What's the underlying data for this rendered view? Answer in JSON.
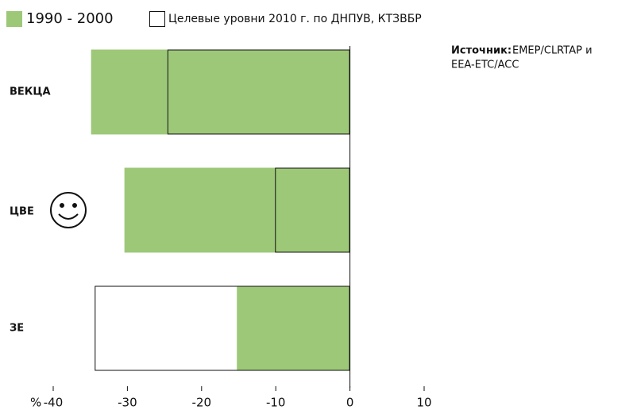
{
  "chart_data": {
    "type": "barh",
    "categories": [
      "ВЕКЦА",
      "ЦВЕ",
      "ЗЕ"
    ],
    "series": [
      {
        "name": "1990 - 2000",
        "color": "#9dc878",
        "values": [
          -34.9,
          -30.4,
          -15.3
        ]
      },
      {
        "name": "Целевые уровни 2010 г. по ДНПУВ, КТЗВБР",
        "color": "#ffffff",
        "values": [
          -24.6,
          -10.1,
          -34.4
        ]
      }
    ],
    "xlabel": "%",
    "xlim": [
      -40,
      10
    ],
    "xticks": [
      -40,
      -30,
      -20,
      -10,
      0,
      10
    ],
    "source_label": "Источник:",
    "source_lines": [
      "EMEP/CLRTAP и",
      "EEA-ETC/ACC"
    ]
  }
}
